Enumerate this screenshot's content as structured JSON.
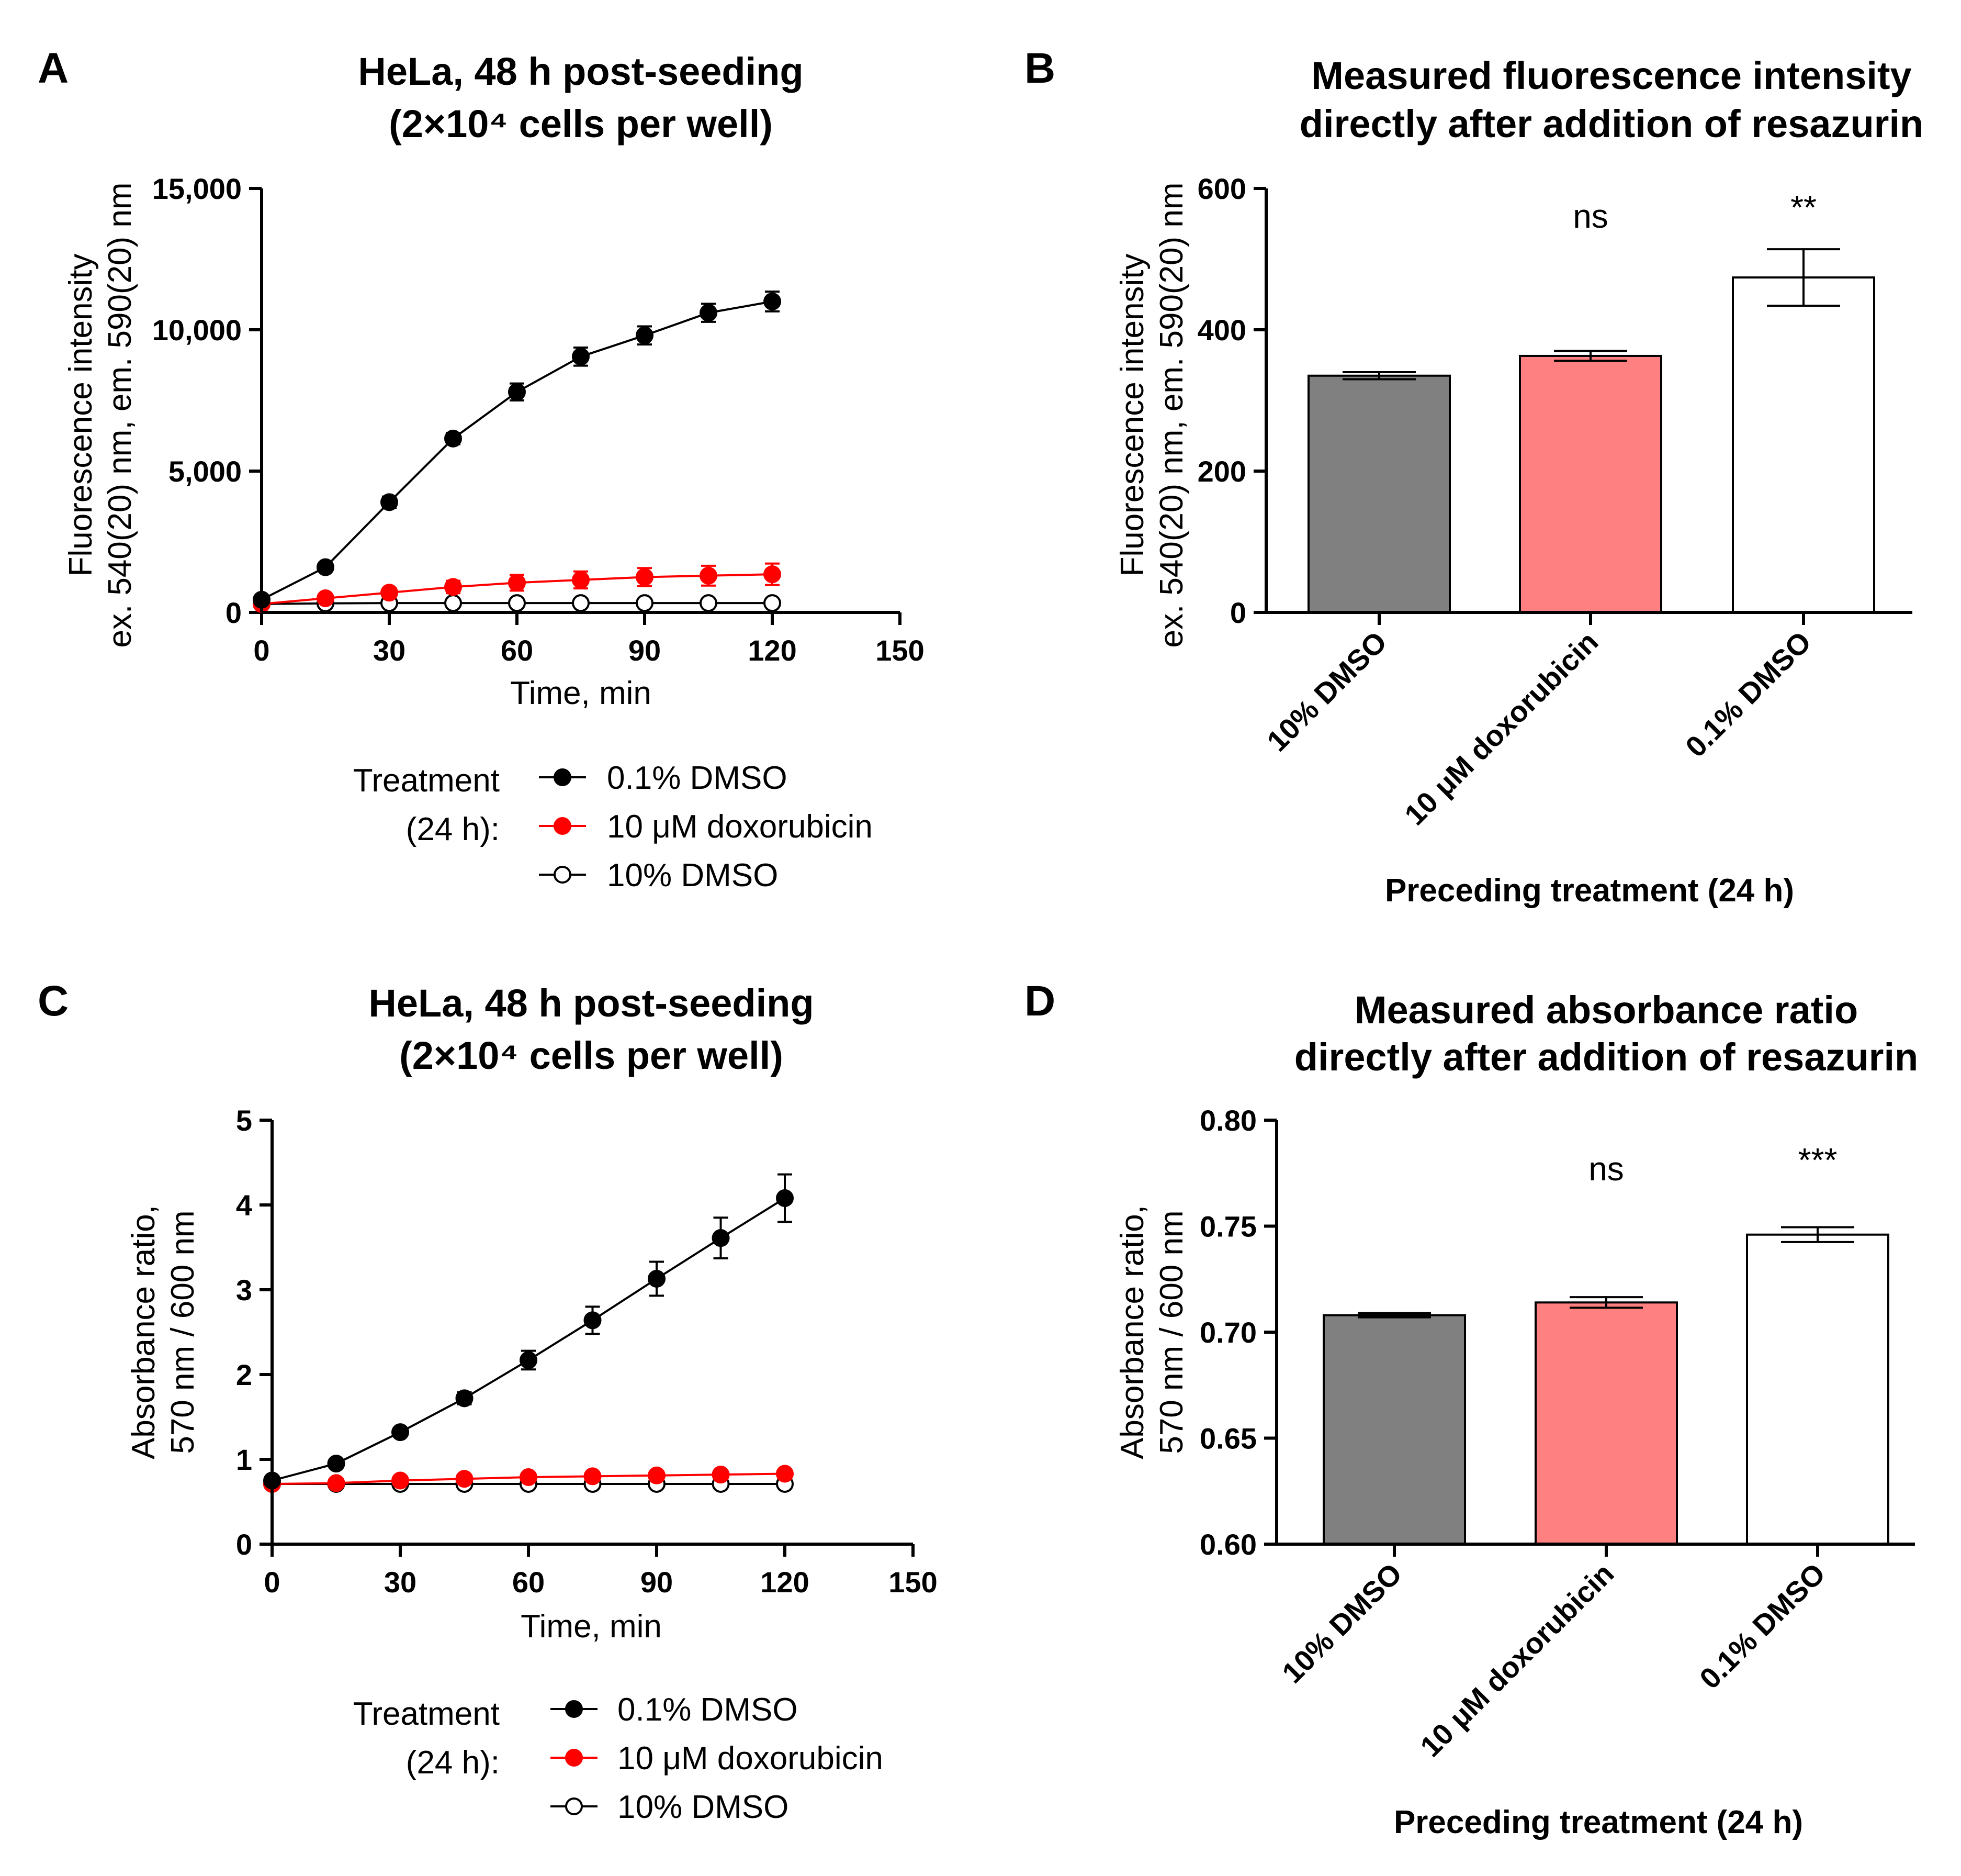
{
  "chart_data": [
    {
      "panel": "A",
      "type": "line",
      "title": "HeLa, 48 h post-seeding",
      "subtitle": "(2×10⁴ cells per well)",
      "xlabel": "Time, min",
      "ylabel_line1": "Fluorescence intensity",
      "ylabel_line2": "ex. 540(20) nm, em. 590(20) nm",
      "xlim": [
        0,
        150
      ],
      "ylim": [
        0,
        15000
      ],
      "xticks": [
        0,
        30,
        60,
        90,
        120,
        150
      ],
      "xtick_labels": [
        "0",
        "30",
        "60",
        "90",
        "120",
        "150"
      ],
      "yticks": [
        0,
        5000,
        10000,
        15000
      ],
      "ytick_labels": [
        "0",
        "5,000",
        "10,000",
        "15,000"
      ],
      "legend_title_line1": "Treatment",
      "legend_title_line2": "(24 h):",
      "x": [
        0,
        15,
        30,
        45,
        60,
        75,
        90,
        105,
        120
      ],
      "series": [
        {
          "name": "0.1% DMSO",
          "color": "#000000",
          "marker": "filled",
          "values": [
            450,
            1600,
            3900,
            6150,
            7800,
            9050,
            9800,
            10600,
            11000
          ],
          "errors": [
            60,
            80,
            200,
            200,
            300,
            320,
            320,
            320,
            350
          ]
        },
        {
          "name": "10 μM doxorubicin",
          "color": "#ff0000",
          "marker": "filled",
          "values": [
            300,
            500,
            700,
            900,
            1050,
            1150,
            1250,
            1300,
            1350
          ],
          "errors": [
            40,
            80,
            150,
            220,
            280,
            300,
            320,
            350,
            380
          ]
        },
        {
          "name": "10% DMSO",
          "color": "#000000",
          "marker": "open",
          "values": [
            300,
            320,
            330,
            330,
            330,
            330,
            330,
            330,
            330
          ],
          "errors": [
            0,
            0,
            0,
            0,
            0,
            0,
            0,
            0,
            0
          ]
        }
      ]
    },
    {
      "panel": "B",
      "type": "bar",
      "title_line1": "Measured fluorescence intensity",
      "title_line2": "directly after addition of resazurin",
      "xlabel": "Preceding treatment (24 h)",
      "ylabel_line1": "Fluorescence intensity",
      "ylabel_line2": "ex. 540(20) nm, em. 590(20) nm",
      "ylim": [
        0,
        600
      ],
      "yticks": [
        0,
        200,
        400,
        600
      ],
      "ytick_labels": [
        "0",
        "200",
        "400",
        "600"
      ],
      "categories": [
        "10% DMSO",
        "10 μM doxorubicin",
        "0.1% DMSO"
      ],
      "values": [
        335,
        363,
        474
      ],
      "errors": [
        5,
        7,
        40
      ],
      "colors": [
        "#808080",
        "#ff8080",
        "#ffffff"
      ],
      "significance": [
        "",
        "ns",
        "**"
      ]
    },
    {
      "panel": "C",
      "type": "line",
      "title": "HeLa, 48 h post-seeding",
      "subtitle": "(2×10⁴ cells per well)",
      "xlabel": "Time, min",
      "ylabel_line1": "Absorbance ratio,",
      "ylabel_line2": "570 nm / 600 nm",
      "xlim": [
        0,
        150
      ],
      "ylim": [
        0,
        5
      ],
      "xticks": [
        0,
        30,
        60,
        90,
        120,
        150
      ],
      "xtick_labels": [
        "0",
        "30",
        "60",
        "90",
        "120",
        "150"
      ],
      "yticks": [
        0,
        1,
        2,
        3,
        4,
        5
      ],
      "ytick_labels": [
        "0",
        "1",
        "2",
        "3",
        "4",
        "5"
      ],
      "legend_title_line1": "Treatment",
      "legend_title_line2": "(24 h):",
      "x": [
        0,
        15,
        30,
        45,
        60,
        75,
        90,
        105,
        120
      ],
      "series": [
        {
          "name": "0.1% DMSO",
          "color": "#000000",
          "marker": "filled",
          "values": [
            0.75,
            0.95,
            1.32,
            1.72,
            2.17,
            2.64,
            3.13,
            3.61,
            4.08
          ],
          "errors": [
            0.02,
            0.03,
            0.04,
            0.07,
            0.11,
            0.16,
            0.2,
            0.24,
            0.28
          ]
        },
        {
          "name": "10 μM doxorubicin",
          "color": "#ff0000",
          "marker": "filled",
          "values": [
            0.71,
            0.72,
            0.75,
            0.77,
            0.79,
            0.8,
            0.81,
            0.82,
            0.83
          ],
          "errors": [
            0.01,
            0.01,
            0.02,
            0.02,
            0.02,
            0.02,
            0.02,
            0.02,
            0.02
          ]
        },
        {
          "name": "10% DMSO",
          "color": "#000000",
          "marker": "open",
          "values": [
            0.71,
            0.71,
            0.71,
            0.71,
            0.71,
            0.71,
            0.71,
            0.71,
            0.71
          ],
          "errors": [
            0,
            0,
            0,
            0,
            0,
            0,
            0,
            0,
            0
          ]
        }
      ]
    },
    {
      "panel": "D",
      "type": "bar",
      "title_line1": "Measured absorbance ratio",
      "title_line2": "directly after addition of resazurin",
      "xlabel": "Preceding treatment (24 h)",
      "ylabel_line1": "Absorbance ratio,",
      "ylabel_line2": "570 nm / 600 nm",
      "ylim": [
        0.6,
        0.8
      ],
      "yticks": [
        0.6,
        0.65,
        0.7,
        0.75,
        0.8
      ],
      "ytick_labels": [
        "0.60",
        "0.65",
        "0.70",
        "0.75",
        "0.80"
      ],
      "categories": [
        "10% DMSO",
        "10 μM doxorubicin",
        "0.1% DMSO"
      ],
      "values": [
        0.708,
        0.714,
        0.746
      ],
      "errors": [
        0.001,
        0.0025,
        0.0035
      ],
      "colors": [
        "#808080",
        "#ff8080",
        "#ffffff"
      ],
      "significance": [
        "",
        "ns",
        "***"
      ]
    }
  ]
}
